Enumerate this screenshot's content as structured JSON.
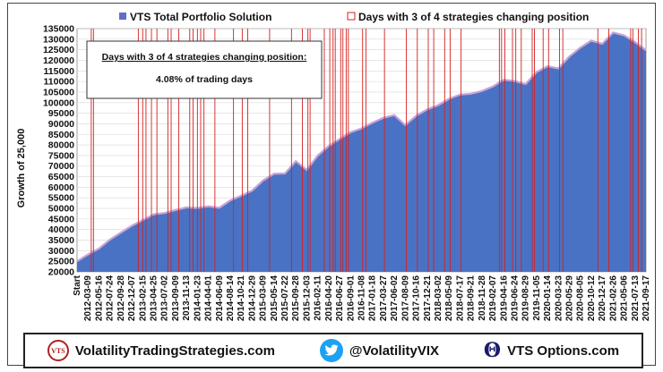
{
  "legend": {
    "series_label": "VTS Total Portfolio Solution",
    "events_label": "Days with 3 of 4 strategies changing position"
  },
  "annotation": {
    "title": "Days with 3 of 4 strategies changing position:",
    "value": "4.08% of trading days"
  },
  "footer": {
    "website": "VolatilityTradingStrategies.com",
    "twitter": "@VolatilityVIX",
    "options": "VTS Options.com",
    "vts_logo_text": "VTS"
  },
  "colors": {
    "area_fill": "#4a72c4",
    "area_highlight": "#c9a3d6",
    "event_line": "#d42020",
    "legend_square": "#5f6fc9"
  },
  "chart_data": {
    "type": "area",
    "ylabel": "Growth of 25,000",
    "xlabel": "",
    "ylim": [
      20000,
      135000
    ],
    "y_ticks": [
      20000,
      25000,
      30000,
      35000,
      40000,
      45000,
      50000,
      55000,
      60000,
      65000,
      70000,
      75000,
      80000,
      85000,
      90000,
      95000,
      100000,
      105000,
      110000,
      115000,
      120000,
      125000,
      130000,
      135000
    ],
    "x_labels": [
      "Start",
      "2012-03-09",
      "2012-05-16",
      "2012-07-24",
      "2012-09-28",
      "2012-12-07",
      "2013-02-15",
      "2013-04-25",
      "2013-07-02",
      "2013-09-09",
      "2013-11-13",
      "2014-01-23",
      "2014-04-01",
      "2014-06-09",
      "2014-08-14",
      "2014-10-21",
      "2014-12-29",
      "2015-03-09",
      "2015-05-14",
      "2015-07-22",
      "2015-09-28",
      "2015-12-03",
      "2016-02-11",
      "2016-04-20",
      "2016-06-27",
      "2016-09-01",
      "2016-11-08",
      "2017-01-18",
      "2017-03-27",
      "2017-06-02",
      "2017-08-09",
      "2017-10-16",
      "2017-12-21",
      "2018-03-02",
      "2018-05-09",
      "2018-07-17",
      "2018-09-21",
      "2018-11-28",
      "2019-02-07",
      "2019-04-16",
      "2019-06-24",
      "2019-08-29",
      "2019-11-05",
      "2020-01-14",
      "2020-03-23",
      "2020-05-29",
      "2020-08-05",
      "2020-10-12",
      "2020-12-17",
      "2021-02-26",
      "2021-05-06",
      "2021-07-13",
      "2021-09-17"
    ],
    "series": [
      {
        "name": "VTS Total Portfolio Solution",
        "values": [
          25000,
          28200,
          31000,
          35200,
          38500,
          41800,
          44500,
          47200,
          47800,
          49200,
          50500,
          50200,
          51000,
          50300,
          53800,
          56000,
          58400,
          63200,
          66400,
          66500,
          72300,
          68200,
          75000,
          79500,
          82800,
          86000,
          87800,
          90500,
          92800,
          94100,
          89400,
          93800,
          96800,
          98800,
          101800,
          103800,
          104200,
          105500,
          107600,
          110800,
          110200,
          108800,
          114500,
          117200,
          116200,
          121800,
          126000,
          129300,
          127800,
          133200,
          131800,
          128600,
          124800
        ]
      }
    ],
    "event_positions": [
      1.3,
      1.5,
      5.6,
      6.0,
      6.3,
      6.8,
      7.3,
      8.3,
      8.6,
      9.3,
      10.3,
      10.6,
      11.0,
      11.3,
      11.6,
      12.6,
      14.3,
      15.1,
      15.6,
      17.6,
      19.6,
      20.6,
      21.1,
      21.3,
      22.6,
      23.1,
      23.4,
      23.6,
      24.1,
      24.3,
      24.6,
      24.8,
      26.1,
      26.4,
      28.1,
      30.1,
      31.1,
      32.1,
      32.6,
      33.6,
      34.1,
      35.1,
      38.6,
      38.8,
      39.1,
      39.8,
      40.1,
      40.6,
      41.6,
      41.8,
      42.6,
      43.1,
      44.1,
      44.4,
      47.6,
      48.6,
      50.6,
      50.8,
      51.3,
      51.6
    ]
  }
}
